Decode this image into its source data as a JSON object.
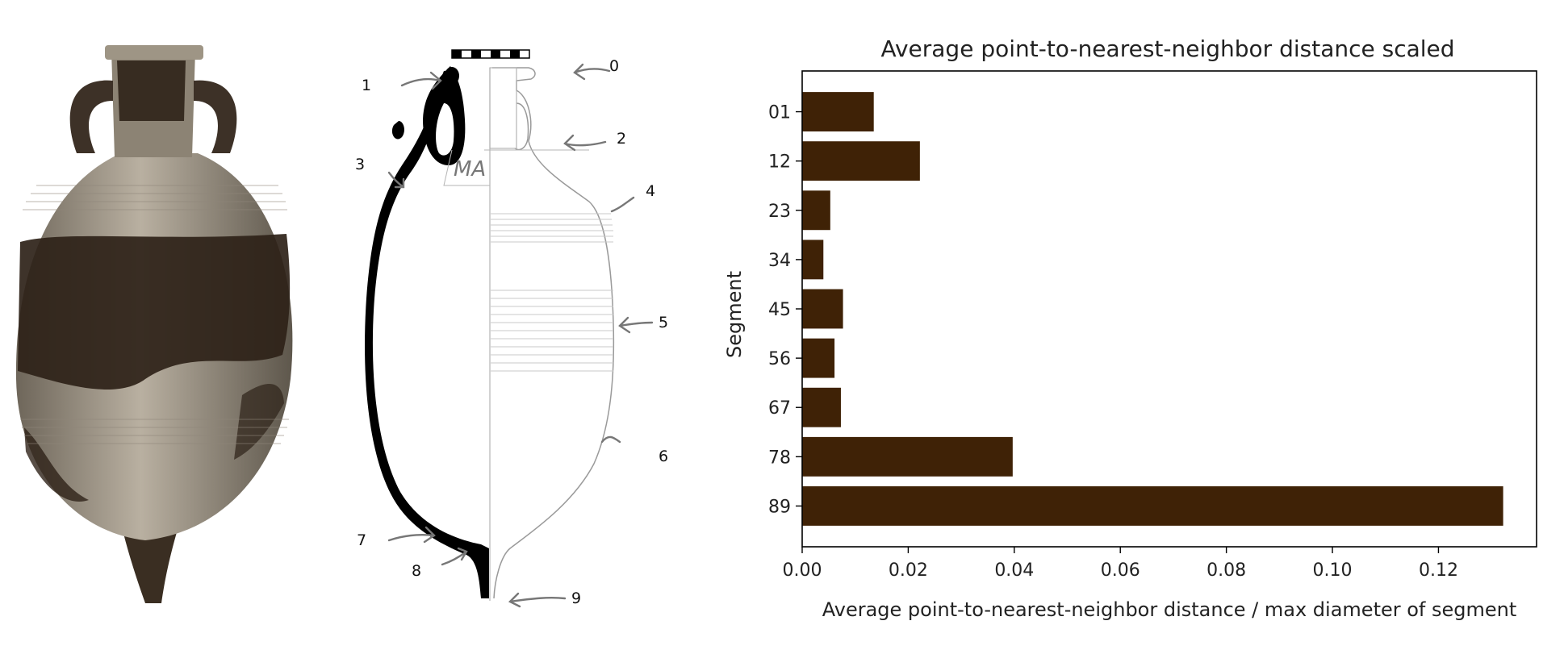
{
  "chart_data": {
    "type": "bar",
    "orientation": "horizontal",
    "title": "Average point-to-nearest-neighbor distance scaled",
    "xlabel": "Average point-to-nearest-neighbor distance / max diameter of segment",
    "ylabel": "Segment",
    "categories": [
      "01",
      "12",
      "23",
      "34",
      "45",
      "56",
      "67",
      "78",
      "89"
    ],
    "values": [
      0.0135,
      0.0222,
      0.0053,
      0.004,
      0.0077,
      0.0061,
      0.0073,
      0.0397,
      0.1322
    ],
    "xlim": [
      0,
      0.1385
    ],
    "xticks": [
      "0.00",
      "0.02",
      "0.04",
      "0.06",
      "0.08",
      "0.10",
      "0.12"
    ],
    "xtick_values": [
      0,
      0.02,
      0.04,
      0.06,
      0.08,
      0.1,
      0.12
    ],
    "bar_color": "#3f2206",
    "grid": false,
    "legend": "none"
  },
  "amphora_drawing": {
    "callouts": [
      "0",
      "1",
      "2",
      "3",
      "4",
      "5",
      "6",
      "7",
      "8",
      "9"
    ],
    "inscription": "MA"
  },
  "colors": {
    "pottery_dark": "#2e2218",
    "pottery_light": "#a49a8a",
    "section_fill": "#000000",
    "profile_line": "#9a9a9a"
  }
}
